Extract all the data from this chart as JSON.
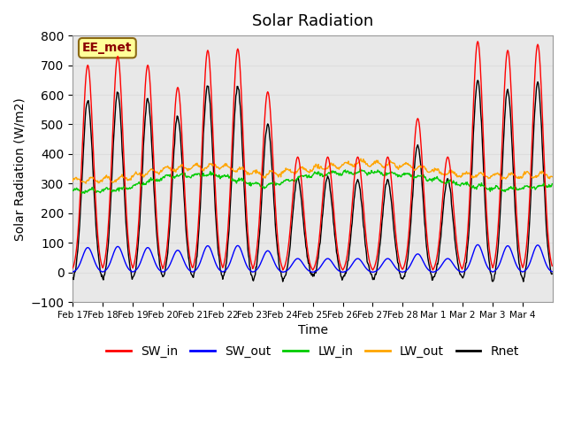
{
  "title": "Solar Radiation",
  "xlabel": "Time",
  "ylabel": "Solar Radiation (W/m2)",
  "ylim": [
    -100,
    800
  ],
  "annotation": "EE_met",
  "line_colors": {
    "SW_in": "#ff0000",
    "SW_out": "#0000ff",
    "LW_in": "#00cc00",
    "LW_out": "#ffa500",
    "Rnet": "#000000"
  },
  "legend_labels": [
    "SW_in",
    "SW_out",
    "LW_in",
    "LW_out",
    "Rnet"
  ],
  "tick_labels": [
    "Feb 17",
    "Feb 18",
    "Feb 19",
    "Feb 20",
    "Feb 21",
    "Feb 22",
    "Feb 23",
    "Feb 24",
    "Feb 25",
    "Feb 26",
    "Feb 27",
    "Feb 28",
    "Mar 1",
    "Mar 2",
    "Mar 3",
    "Mar 4"
  ],
  "grid_color": "#dddddd",
  "bg_color": "#e8e8e8",
  "title_fontsize": 13,
  "axis_fontsize": 10,
  "legend_fontsize": 10
}
